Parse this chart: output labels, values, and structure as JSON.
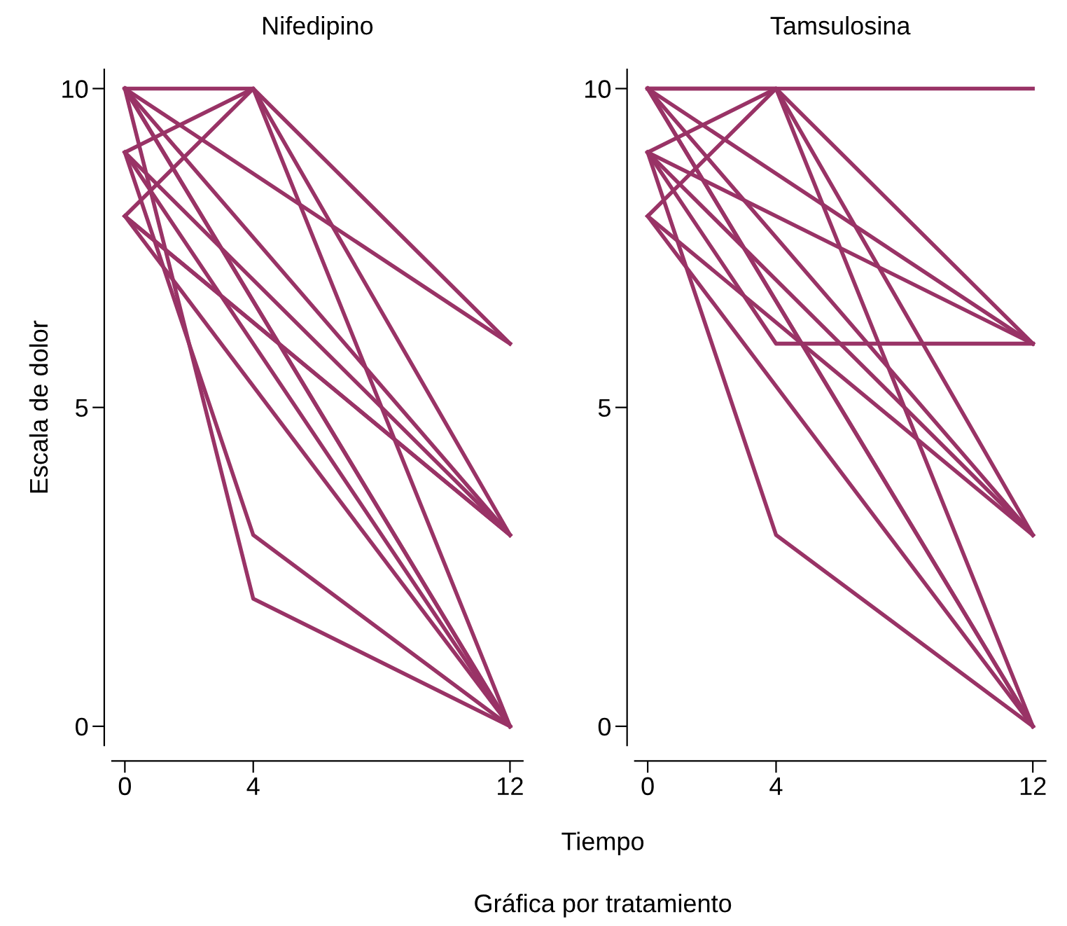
{
  "chart_data": [
    {
      "type": "line",
      "title": "Nifedipino",
      "ylabel": "Escala de dolor",
      "xlabel": "Tiempo",
      "annotations": [
        "Gráfica por tratamiento"
      ],
      "xlim": [
        -0.4,
        12.4
      ],
      "ylim": [
        -0.3,
        10.3
      ],
      "xticks": [
        0,
        4,
        12
      ],
      "yticks": [
        0,
        5,
        10
      ],
      "grid": false,
      "legend": false,
      "marker": "none",
      "line_style": "solid",
      "series": [
        {
          "color": "#993366",
          "x": [
            0,
            4,
            12
          ],
          "values": [
            10,
            10,
            6
          ]
        },
        {
          "color": "#993366",
          "x": [
            0,
            4,
            12
          ],
          "values": [
            9,
            10,
            3
          ]
        },
        {
          "color": "#993366",
          "x": [
            0,
            4,
            12
          ],
          "values": [
            8,
            10,
            0
          ]
        },
        {
          "color": "#993366",
          "x": [
            0,
            12
          ],
          "values": [
            10,
            6
          ]
        },
        {
          "color": "#993366",
          "x": [
            0,
            4,
            12
          ],
          "values": [
            10,
            2,
            0
          ]
        },
        {
          "color": "#993366",
          "x": [
            0,
            4,
            12
          ],
          "values": [
            9,
            3,
            0
          ]
        },
        {
          "color": "#993366",
          "x": [
            0,
            12
          ],
          "values": [
            10,
            3
          ]
        },
        {
          "color": "#993366",
          "x": [
            0,
            12
          ],
          "values": [
            10,
            0
          ]
        },
        {
          "color": "#993366",
          "x": [
            0,
            12
          ],
          "values": [
            10,
            0
          ]
        },
        {
          "color": "#993366",
          "x": [
            0,
            12
          ],
          "values": [
            9,
            3
          ]
        },
        {
          "color": "#993366",
          "x": [
            0,
            12
          ],
          "values": [
            9,
            0
          ]
        },
        {
          "color": "#993366",
          "x": [
            0,
            12
          ],
          "values": [
            8,
            3
          ]
        },
        {
          "color": "#993366",
          "x": [
            0,
            12
          ],
          "values": [
            8,
            3
          ]
        },
        {
          "color": "#993366",
          "x": [
            0,
            12
          ],
          "values": [
            8,
            0
          ]
        }
      ]
    },
    {
      "type": "line",
      "title": "Tamsulosina",
      "xlim": [
        -0.4,
        12.4
      ],
      "ylim": [
        -0.3,
        10.3
      ],
      "xticks": [
        0,
        4,
        12
      ],
      "yticks": [
        0,
        5,
        10
      ],
      "grid": false,
      "legend": false,
      "marker": "none",
      "line_style": "solid",
      "series": [
        {
          "color": "#993366",
          "x": [
            0,
            4,
            12
          ],
          "values": [
            10,
            10,
            10
          ]
        },
        {
          "color": "#993366",
          "x": [
            0,
            4,
            12
          ],
          "values": [
            9,
            10,
            6
          ]
        },
        {
          "color": "#993366",
          "x": [
            0,
            4,
            12
          ],
          "values": [
            8,
            10,
            3
          ]
        },
        {
          "color": "#993366",
          "x": [
            0,
            4,
            12
          ],
          "values": [
            10,
            10,
            0
          ]
        },
        {
          "color": "#993366",
          "x": [
            0,
            12
          ],
          "values": [
            10,
            6
          ]
        },
        {
          "color": "#993366",
          "x": [
            0,
            12
          ],
          "values": [
            9,
            6
          ]
        },
        {
          "color": "#993366",
          "x": [
            0,
            4,
            12
          ],
          "values": [
            9,
            6,
            6
          ]
        },
        {
          "color": "#993366",
          "x": [
            0,
            4,
            12
          ],
          "values": [
            9,
            3,
            0
          ]
        },
        {
          "color": "#993366",
          "x": [
            0,
            12
          ],
          "values": [
            10,
            3
          ]
        },
        {
          "color": "#993366",
          "x": [
            0,
            12
          ],
          "values": [
            10,
            0
          ]
        },
        {
          "color": "#993366",
          "x": [
            0,
            12
          ],
          "values": [
            9,
            3
          ]
        },
        {
          "color": "#993366",
          "x": [
            0,
            12
          ],
          "values": [
            8,
            3
          ]
        },
        {
          "color": "#993366",
          "x": [
            0,
            12
          ],
          "values": [
            8,
            0
          ]
        },
        {
          "color": "#993366",
          "x": [
            0,
            12
          ],
          "values": [
            10,
            0
          ]
        }
      ]
    }
  ]
}
